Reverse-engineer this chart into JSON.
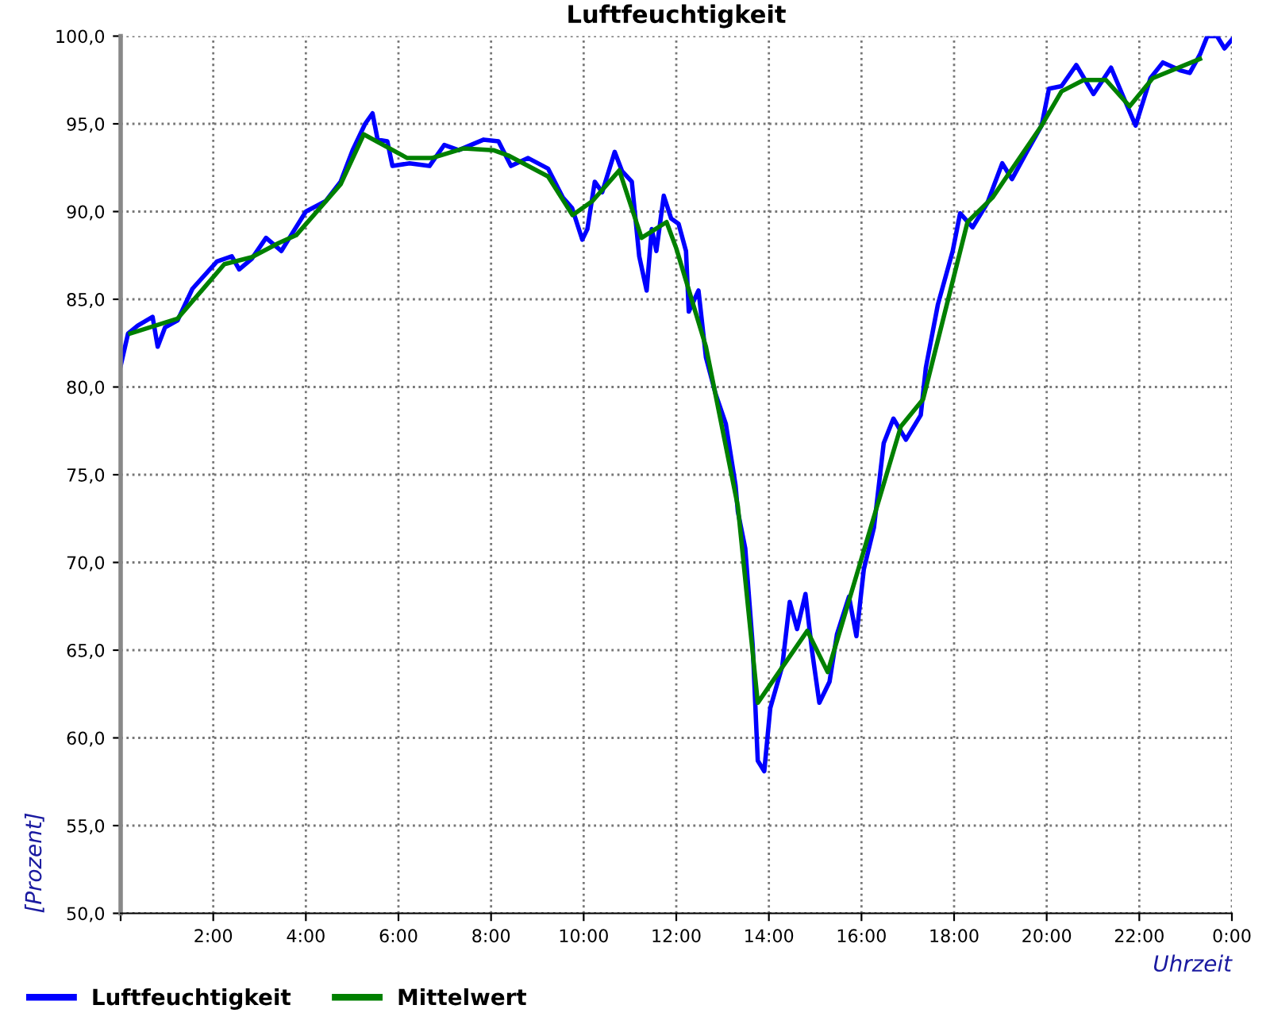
{
  "chart_data": {
    "type": "line",
    "title": "Luftfeuchtigkeit",
    "xlabel": "Uhrzeit",
    "ylabel": "[Prozent]",
    "xlim": [
      0,
      24
    ],
    "xticks": [
      {
        "value": 0,
        "label": null
      },
      {
        "value": 2,
        "label": "2:00"
      },
      {
        "value": 4,
        "label": "4:00"
      },
      {
        "value": 6,
        "label": "6:00"
      },
      {
        "value": 8,
        "label": "8:00"
      },
      {
        "value": 10,
        "label": "10:00"
      },
      {
        "value": 12,
        "label": "12:00"
      },
      {
        "value": 14,
        "label": "14:00"
      },
      {
        "value": 16,
        "label": "16:00"
      },
      {
        "value": 18,
        "label": "18:00"
      },
      {
        "value": 20,
        "label": "20:00"
      },
      {
        "value": 22,
        "label": "22:00"
      },
      {
        "value": 24,
        "label": "0:00"
      }
    ],
    "ylim": [
      50,
      100
    ],
    "yticks": [
      {
        "value": 50,
        "label": "50,0"
      },
      {
        "value": 55,
        "label": "55,0"
      },
      {
        "value": 60,
        "label": "60,0"
      },
      {
        "value": 65,
        "label": "65,0"
      },
      {
        "value": 70,
        "label": "70,0"
      },
      {
        "value": 75,
        "label": "75,0"
      },
      {
        "value": 80,
        "label": "80,0"
      },
      {
        "value": 85,
        "label": "85,0"
      },
      {
        "value": 90,
        "label": "90,0"
      },
      {
        "value": 95,
        "label": "95,0"
      },
      {
        "value": 100,
        "label": "100,0"
      }
    ],
    "grid": true,
    "legend": "bottom",
    "marker": "none",
    "line_style": "solid",
    "series": [
      {
        "name": "Luftfeuchtigkeit",
        "color": "#0000ff",
        "x": [
          0,
          0.16,
          0.37,
          0.69,
          0.8,
          0.96,
          1.23,
          1.55,
          2.08,
          2.4,
          2.56,
          2.83,
          3.14,
          3.47,
          3.68,
          4.0,
          4.43,
          4.75,
          5.01,
          5.28,
          5.44,
          5.55,
          5.76,
          5.87,
          6.24,
          6.67,
          6.99,
          7.3,
          7.84,
          8.16,
          8.43,
          8.8,
          9.23,
          9.55,
          9.75,
          9.97,
          10.08,
          10.24,
          10.4,
          10.67,
          10.83,
          11.04,
          11.2,
          11.36,
          11.47,
          11.57,
          11.73,
          11.89,
          12.05,
          12.21,
          12.27,
          12.48,
          12.64,
          12.85,
          13.07,
          13.28,
          13.33,
          13.49,
          13.65,
          13.76,
          13.9,
          14.03,
          14.29,
          14.45,
          14.61,
          14.79,
          14.93,
          15.09,
          15.31,
          15.47,
          15.73,
          15.89,
          16.05,
          16.27,
          16.48,
          16.69,
          16.96,
          17.28,
          17.39,
          17.65,
          17.97,
          18.13,
          18.4,
          18.72,
          19.04,
          19.25,
          19.57,
          19.89,
          20.05,
          20.32,
          20.64,
          21.01,
          21.39,
          21.71,
          21.92,
          22.24,
          22.51,
          22.88,
          23.09,
          23.31,
          23.47,
          23.68,
          23.84,
          24.0
        ],
        "values": [
          81.2,
          83.05,
          83.5,
          84.0,
          82.3,
          83.4,
          83.8,
          85.6,
          87.15,
          87.45,
          86.7,
          87.3,
          88.5,
          87.75,
          88.65,
          90.0,
          90.6,
          91.7,
          93.5,
          95.0,
          95.6,
          94.1,
          94.0,
          92.6,
          92.75,
          92.6,
          93.8,
          93.5,
          94.1,
          94.0,
          92.6,
          93.05,
          92.45,
          90.8,
          90.2,
          88.4,
          89.0,
          91.7,
          91.1,
          93.4,
          92.3,
          91.7,
          87.45,
          85.5,
          89.0,
          87.75,
          90.9,
          89.6,
          89.3,
          87.75,
          84.3,
          85.5,
          81.7,
          79.6,
          77.9,
          74.4,
          72.9,
          70.8,
          65.3,
          58.7,
          58.1,
          61.7,
          64.1,
          67.75,
          66.2,
          68.2,
          65.0,
          62.0,
          63.2,
          65.9,
          68.05,
          65.8,
          69.6,
          72.0,
          76.8,
          78.2,
          77.0,
          78.4,
          81.1,
          84.7,
          87.75,
          89.9,
          89.1,
          90.5,
          92.75,
          91.85,
          93.4,
          94.9,
          97.0,
          97.15,
          98.35,
          96.7,
          98.2,
          96.2,
          94.9,
          97.6,
          98.5,
          98.05,
          97.9,
          98.95,
          100.0,
          100.0,
          99.3,
          99.8
        ]
      },
      {
        "name": "Mittelwert",
        "color": "#008000",
        "x": [
          0.21,
          1.23,
          2.24,
          2.83,
          3.41,
          3.79,
          4.75,
          5.25,
          6.19,
          6.72,
          7.41,
          8.05,
          8.37,
          9.23,
          9.76,
          10.19,
          10.77,
          11.25,
          11.79,
          12.0,
          12.64,
          13.33,
          13.76,
          14.83,
          15.27,
          16.85,
          17.33,
          18.29,
          18.83,
          19.89,
          20.32,
          20.8,
          21.28,
          21.79,
          22.29,
          23.31
        ],
        "values": [
          83.05,
          83.9,
          87.0,
          87.4,
          88.2,
          88.65,
          91.55,
          94.4,
          93.05,
          93.05,
          93.6,
          93.5,
          93.2,
          92.0,
          89.8,
          90.6,
          92.35,
          88.5,
          89.4,
          87.9,
          82.3,
          73.2,
          62.0,
          66.1,
          63.75,
          77.75,
          79.3,
          89.4,
          90.8,
          94.9,
          96.85,
          97.5,
          97.5,
          96.0,
          97.6,
          98.7
        ]
      }
    ]
  }
}
